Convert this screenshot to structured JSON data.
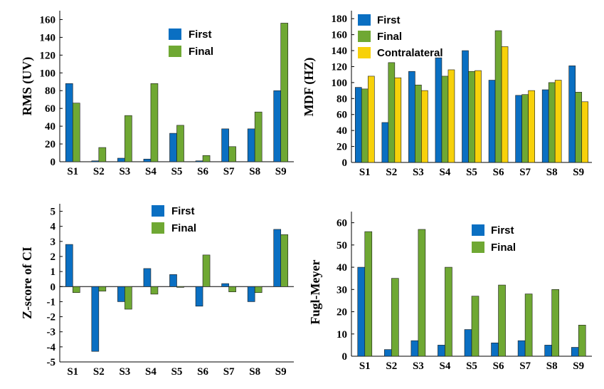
{
  "colors": {
    "First": "#0a6fc2",
    "Final": "#6fa833",
    "Contralateral": "#f7d10a"
  },
  "chart_data": [
    {
      "type": "bar",
      "title": "",
      "xlabel": "",
      "ylabel": "RMS (UV)",
      "categories": [
        "S1",
        "S2",
        "S3",
        "S4",
        "S5",
        "S6",
        "S7",
        "S8",
        "S9"
      ],
      "ylim": [
        0,
        170
      ],
      "yticks": [
        0,
        20,
        40,
        60,
        80,
        100,
        120,
        140,
        160
      ],
      "legend_position": "top-center",
      "series": [
        {
          "name": "First",
          "values": [
            88,
            1,
            4,
            3,
            32,
            1,
            37,
            37,
            80
          ]
        },
        {
          "name": "Final",
          "values": [
            66,
            16,
            52,
            88,
            41,
            7,
            17,
            56,
            156
          ]
        }
      ]
    },
    {
      "type": "bar",
      "title": "",
      "xlabel": "",
      "ylabel": "MDF (HZ)",
      "categories": [
        "S1",
        "S2",
        "S3",
        "S4",
        "S5",
        "S6",
        "S7",
        "S8",
        "S9"
      ],
      "ylim": [
        0,
        190
      ],
      "yticks": [
        0,
        20,
        40,
        60,
        80,
        100,
        120,
        140,
        160,
        180
      ],
      "legend_position": "top-left",
      "series": [
        {
          "name": "First",
          "values": [
            94,
            50,
            114,
            131,
            140,
            103,
            84,
            91,
            121
          ]
        },
        {
          "name": "Final",
          "values": [
            92,
            125,
            97,
            108,
            114,
            165,
            85,
            100,
            88
          ]
        },
        {
          "name": "Contralateral",
          "values": [
            108,
            106,
            90,
            116,
            115,
            145,
            90,
            103,
            76
          ]
        }
      ]
    },
    {
      "type": "bar",
      "title": "",
      "xlabel": "",
      "ylabel": "Z-score of CI",
      "categories": [
        "S1",
        "S2",
        "S3",
        "S4",
        "S5",
        "S6",
        "S7",
        "S8",
        "S9"
      ],
      "ylim": [
        -5,
        5.5
      ],
      "yticks": [
        -5,
        -4,
        -3,
        -2,
        -1,
        0,
        1,
        2,
        3,
        4,
        5
      ],
      "legend_position": "top-center",
      "series": [
        {
          "name": "First",
          "values": [
            2.8,
            -4.3,
            -1.0,
            1.2,
            0.8,
            -1.3,
            0.2,
            -1.0,
            3.8
          ]
        },
        {
          "name": "Final",
          "values": [
            -0.4,
            -0.3,
            -1.5,
            -0.5,
            -0.05,
            2.1,
            -0.35,
            -0.4,
            3.45
          ]
        }
      ]
    },
    {
      "type": "bar",
      "title": "",
      "xlabel": "",
      "ylabel": "Fugl-Meyer",
      "categories": [
        "S1",
        "S2",
        "S3",
        "S4",
        "S5",
        "S6",
        "S7",
        "S8",
        "S9"
      ],
      "ylim": [
        0,
        65
      ],
      "yticks": [
        0,
        10,
        20,
        30,
        40,
        50,
        60
      ],
      "legend_position": "top-right",
      "series": [
        {
          "name": "First",
          "values": [
            40,
            3,
            7,
            5,
            12,
            6,
            7,
            5,
            4
          ]
        },
        {
          "name": "Final",
          "values": [
            56,
            35,
            57,
            40,
            27,
            32,
            28,
            30,
            14
          ]
        }
      ]
    }
  ]
}
